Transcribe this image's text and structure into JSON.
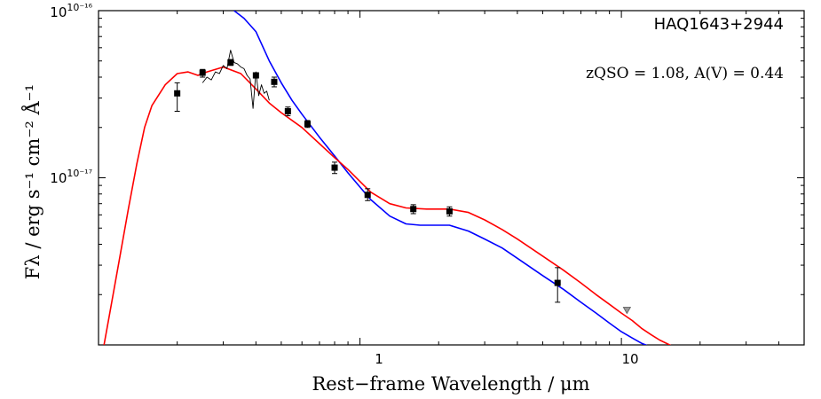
{
  "chart_data": {
    "type": "line",
    "title": "",
    "xlabel": "Rest−frame Wavelength / μm",
    "ylabel": "Fλ / erg s⁻¹ cm⁻² Å⁻¹",
    "x_scale": "log",
    "y_scale": "log",
    "xlim": [
      0.1,
      50
    ],
    "ylim": [
      1e-18,
      1e-16
    ],
    "x_tick_labels": [
      "1",
      "10"
    ],
    "y_tick_labels": [
      "10⁻¹⁶",
      "10⁻¹⁷"
    ],
    "grid": false,
    "annotation_name": "HAQ1643+2944",
    "annotation_params": "zQSO = 1.08, A(V) = 0.44",
    "colors": {
      "blue_model": "#0000ff",
      "red_model": "#ff0000",
      "spectrum": "#000000",
      "photometry": "#000000"
    },
    "series": [
      {
        "kind": "line",
        "color": "#0000ff",
        "x": [
          0.33,
          0.36,
          0.4,
          0.45,
          0.5,
          0.55,
          0.6,
          0.7,
          0.8,
          0.9,
          1.0,
          1.1,
          1.3,
          1.5,
          1.7,
          1.9,
          2.2,
          2.6,
          3.0,
          3.5,
          4.0,
          5.0,
          6.0,
          7.0,
          8.0,
          9.0,
          10.0,
          11.0,
          12.0,
          13.0
        ],
        "y": [
          1e-16,
          9e-17,
          7.5e-17,
          5e-17,
          3.7e-17,
          2.9e-17,
          2.4e-17,
          1.75e-17,
          1.35e-17,
          1.07e-17,
          8.8e-18,
          7.4e-18,
          5.9e-18,
          5.3e-18,
          5.2e-18,
          5.2e-18,
          5.2e-18,
          4.8e-18,
          4.3e-18,
          3.8e-18,
          3.3e-18,
          2.6e-18,
          2.15e-18,
          1.8e-18,
          1.55e-18,
          1.35e-18,
          1.2e-18,
          1.1e-18,
          1.02e-18,
          9.7e-19
        ]
      },
      {
        "kind": "line",
        "color": "#ff0000",
        "x": [
          0.105,
          0.11,
          0.12,
          0.13,
          0.14,
          0.15,
          0.16,
          0.18,
          0.2,
          0.22,
          0.24,
          0.26,
          0.3,
          0.35,
          0.4,
          0.45,
          0.5,
          0.6,
          0.7,
          0.8,
          0.9,
          1.0,
          1.1,
          1.3,
          1.5,
          1.8,
          2.2,
          2.6,
          3.0,
          3.5,
          4.0,
          5.0,
          6.0,
          7.0,
          8.0,
          9.0,
          10.0,
          11.0,
          12.0,
          13.0,
          14.0,
          15.5
        ],
        "y": [
          1e-18,
          1.5e-18,
          3.2e-18,
          6.5e-18,
          1.2e-17,
          2e-17,
          2.7e-17,
          3.6e-17,
          4.2e-17,
          4.3e-17,
          4.1e-17,
          4.3e-17,
          4.6e-17,
          4.2e-17,
          3.4e-17,
          2.8e-17,
          2.45e-17,
          2e-17,
          1.6e-17,
          1.32e-17,
          1.12e-17,
          9.5e-18,
          8.2e-18,
          7e-18,
          6.6e-18,
          6.5e-18,
          6.5e-18,
          6.2e-18,
          5.6e-18,
          4.9e-18,
          4.3e-18,
          3.4e-18,
          2.8e-18,
          2.35e-18,
          2e-18,
          1.75e-18,
          1.55e-18,
          1.4e-18,
          1.25e-18,
          1.15e-18,
          1.07e-18,
          9.9e-19
        ]
      },
      {
        "kind": "spectrum",
        "color": "#000000",
        "x": [
          0.25,
          0.26,
          0.27,
          0.28,
          0.29,
          0.3,
          0.31,
          0.32,
          0.33,
          0.34,
          0.35,
          0.36,
          0.37,
          0.38,
          0.39,
          0.4,
          0.41,
          0.42,
          0.43,
          0.44,
          0.45
        ],
        "y": [
          3.7e-17,
          4e-17,
          3.85e-17,
          4.3e-17,
          4.2e-17,
          4.7e-17,
          4.5e-17,
          5.8e-17,
          4.9e-17,
          4.8e-17,
          4.6e-17,
          4.5e-17,
          4.1e-17,
          3.9e-17,
          2.6e-17,
          4.3e-17,
          3.1e-17,
          3.6e-17,
          3.2e-17,
          3.3e-17,
          2.9e-17
        ]
      },
      {
        "kind": "points",
        "color": "#000000",
        "points": [
          {
            "x": 0.2,
            "y": 3.2e-17,
            "lo": 2.5e-17,
            "hi": 3.7e-17
          },
          {
            "x": 0.25,
            "y": 4.25e-17,
            "lo": 4e-17,
            "hi": 4.45e-17
          },
          {
            "x": 0.32,
            "y": 4.9e-17,
            "lo": 4.7e-17,
            "hi": 5.1e-17
          },
          {
            "x": 0.4,
            "y": 4.1e-17,
            "lo": 3.95e-17,
            "hi": 4.25e-17
          },
          {
            "x": 0.47,
            "y": 3.75e-17,
            "lo": 3.5e-17,
            "hi": 4e-17
          },
          {
            "x": 0.53,
            "y": 2.5e-17,
            "lo": 2.35e-17,
            "hi": 2.65e-17
          },
          {
            "x": 0.63,
            "y": 2.1e-17,
            "lo": 2e-17,
            "hi": 2.2e-17
          },
          {
            "x": 0.8,
            "y": 1.15e-17,
            "lo": 1.06e-17,
            "hi": 1.24e-17
          },
          {
            "x": 1.07,
            "y": 7.9e-18,
            "lo": 7.3e-18,
            "hi": 8.6e-18
          },
          {
            "x": 1.6,
            "y": 6.5e-18,
            "lo": 6.1e-18,
            "hi": 6.9e-18
          },
          {
            "x": 2.2,
            "y": 6.3e-18,
            "lo": 5.9e-18,
            "hi": 6.7e-18
          },
          {
            "x": 5.7,
            "y": 2.35e-18,
            "lo": 1.8e-18,
            "hi": 2.9e-18
          }
        ]
      },
      {
        "kind": "upper_limit",
        "color": "#808080",
        "x": 10.5,
        "y": 1.6e-18
      }
    ]
  }
}
